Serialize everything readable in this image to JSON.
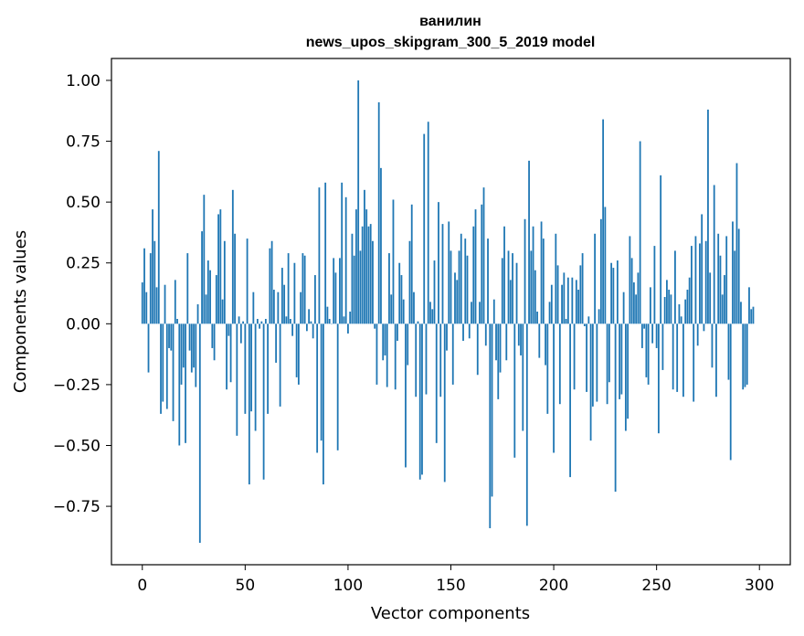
{
  "chart_data": {
    "type": "bar",
    "title": "ванилин",
    "subtitle": "news_upos_skipgram_300_5_2019 model",
    "xlabel": "Vector components",
    "ylabel": "Components values",
    "xlim": [
      -15,
      315
    ],
    "ylim": [
      -0.99,
      1.09
    ],
    "xticks": [
      0,
      50,
      100,
      150,
      200,
      250,
      300
    ],
    "yticks": [
      -0.75,
      -0.5,
      -0.25,
      0.0,
      0.25,
      0.5,
      0.75,
      1.0
    ],
    "ytick_labels": [
      "−0.75",
      "−0.50",
      "−0.25",
      "0.00",
      "0.25",
      "0.50",
      "0.75",
      "1.00"
    ],
    "bar_color": "#1f77b4",
    "series": [
      {
        "name": "ванилин",
        "values": [
          0.17,
          0.31,
          0.13,
          -0.2,
          0.29,
          0.47,
          0.34,
          0.15,
          0.71,
          -0.37,
          -0.32,
          0.16,
          -0.35,
          -0.1,
          -0.11,
          -0.4,
          0.18,
          0.02,
          -0.5,
          -0.25,
          -0.18,
          -0.49,
          0.29,
          -0.11,
          -0.2,
          -0.18,
          -0.26,
          0.08,
          -0.9,
          0.38,
          0.53,
          0.12,
          0.26,
          0.22,
          -0.1,
          -0.15,
          0.2,
          0.45,
          0.47,
          0.1,
          0.34,
          -0.27,
          -0.05,
          -0.24,
          0.55,
          0.37,
          -0.46,
          0.03,
          -0.08,
          0.01,
          -0.37,
          0.35,
          -0.66,
          -0.36,
          0.13,
          -0.44,
          0.02,
          -0.02,
          0.01,
          -0.64,
          0.02,
          -0.37,
          0.31,
          0.34,
          0.14,
          -0.16,
          0.13,
          -0.34,
          0.23,
          0.16,
          0.03,
          0.29,
          0.02,
          -0.05,
          0.25,
          -0.22,
          -0.25,
          0.13,
          0.29,
          0.28,
          -0.03,
          0.06,
          0.01,
          -0.06,
          0.2,
          -0.53,
          0.56,
          -0.48,
          -0.66,
          0.58,
          0.07,
          0.02,
          0.0,
          0.27,
          0.21,
          -0.52,
          0.27,
          0.58,
          0.03,
          0.52,
          -0.04,
          0.05,
          0.37,
          0.28,
          0.47,
          1.0,
          0.3,
          0.4,
          0.55,
          0.47,
          0.4,
          0.41,
          0.34,
          -0.02,
          -0.25,
          0.91,
          0.64,
          -0.15,
          -0.13,
          -0.26,
          0.29,
          0.12,
          0.51,
          -0.27,
          -0.07,
          0.25,
          0.2,
          0.1,
          -0.59,
          -0.17,
          0.34,
          0.49,
          0.13,
          -0.3,
          0.01,
          -0.64,
          -0.62,
          0.78,
          -0.29,
          0.83,
          0.09,
          0.06,
          0.26,
          -0.49,
          0.5,
          -0.3,
          0.41,
          -0.65,
          -0.11,
          0.42,
          0.3,
          -0.25,
          0.21,
          0.18,
          0.3,
          0.37,
          -0.07,
          0.35,
          0.28,
          -0.06,
          0.09,
          0.4,
          0.47,
          -0.21,
          0.09,
          0.49,
          0.56,
          -0.09,
          0.35,
          -0.84,
          -0.71,
          0.1,
          -0.15,
          -0.31,
          -0.2,
          0.27,
          0.4,
          -0.15,
          0.3,
          0.18,
          0.29,
          -0.55,
          0.25,
          -0.09,
          -0.13,
          -0.44,
          0.43,
          -0.83,
          0.67,
          0.3,
          0.4,
          0.22,
          0.05,
          -0.14,
          0.42,
          0.35,
          -0.17,
          -0.37,
          0.09,
          0.16,
          -0.53,
          0.37,
          0.24,
          -0.33,
          0.16,
          0.21,
          0.02,
          0.19,
          -0.63,
          0.19,
          -0.27,
          0.18,
          0.14,
          0.24,
          0.29,
          -0.01,
          -0.28,
          0.03,
          -0.48,
          -0.34,
          0.37,
          -0.32,
          0.06,
          0.43,
          0.84,
          0.48,
          -0.33,
          -0.24,
          0.25,
          0.23,
          -0.69,
          0.26,
          -0.31,
          -0.29,
          0.13,
          -0.44,
          -0.39,
          0.36,
          0.27,
          0.17,
          0.12,
          0.21,
          0.75,
          -0.1,
          -0.02,
          -0.22,
          -0.25,
          0.15,
          -0.08,
          0.32,
          -0.1,
          -0.45,
          0.61,
          -0.19,
          0.11,
          0.18,
          0.14,
          0.12,
          -0.27,
          0.3,
          -0.28,
          0.08,
          0.03,
          -0.3,
          0.1,
          0.14,
          0.19,
          0.32,
          -0.32,
          0.36,
          -0.09,
          0.33,
          0.45,
          -0.03,
          0.34,
          0.88,
          0.21,
          -0.18,
          0.57,
          -0.3,
          0.37,
          0.28,
          0.12,
          0.2,
          0.36,
          -0.23,
          -0.56,
          0.42,
          0.3,
          0.66,
          0.39,
          0.09,
          -0.27,
          -0.26,
          -0.25,
          0.15,
          0.06,
          0.07
        ]
      }
    ]
  }
}
